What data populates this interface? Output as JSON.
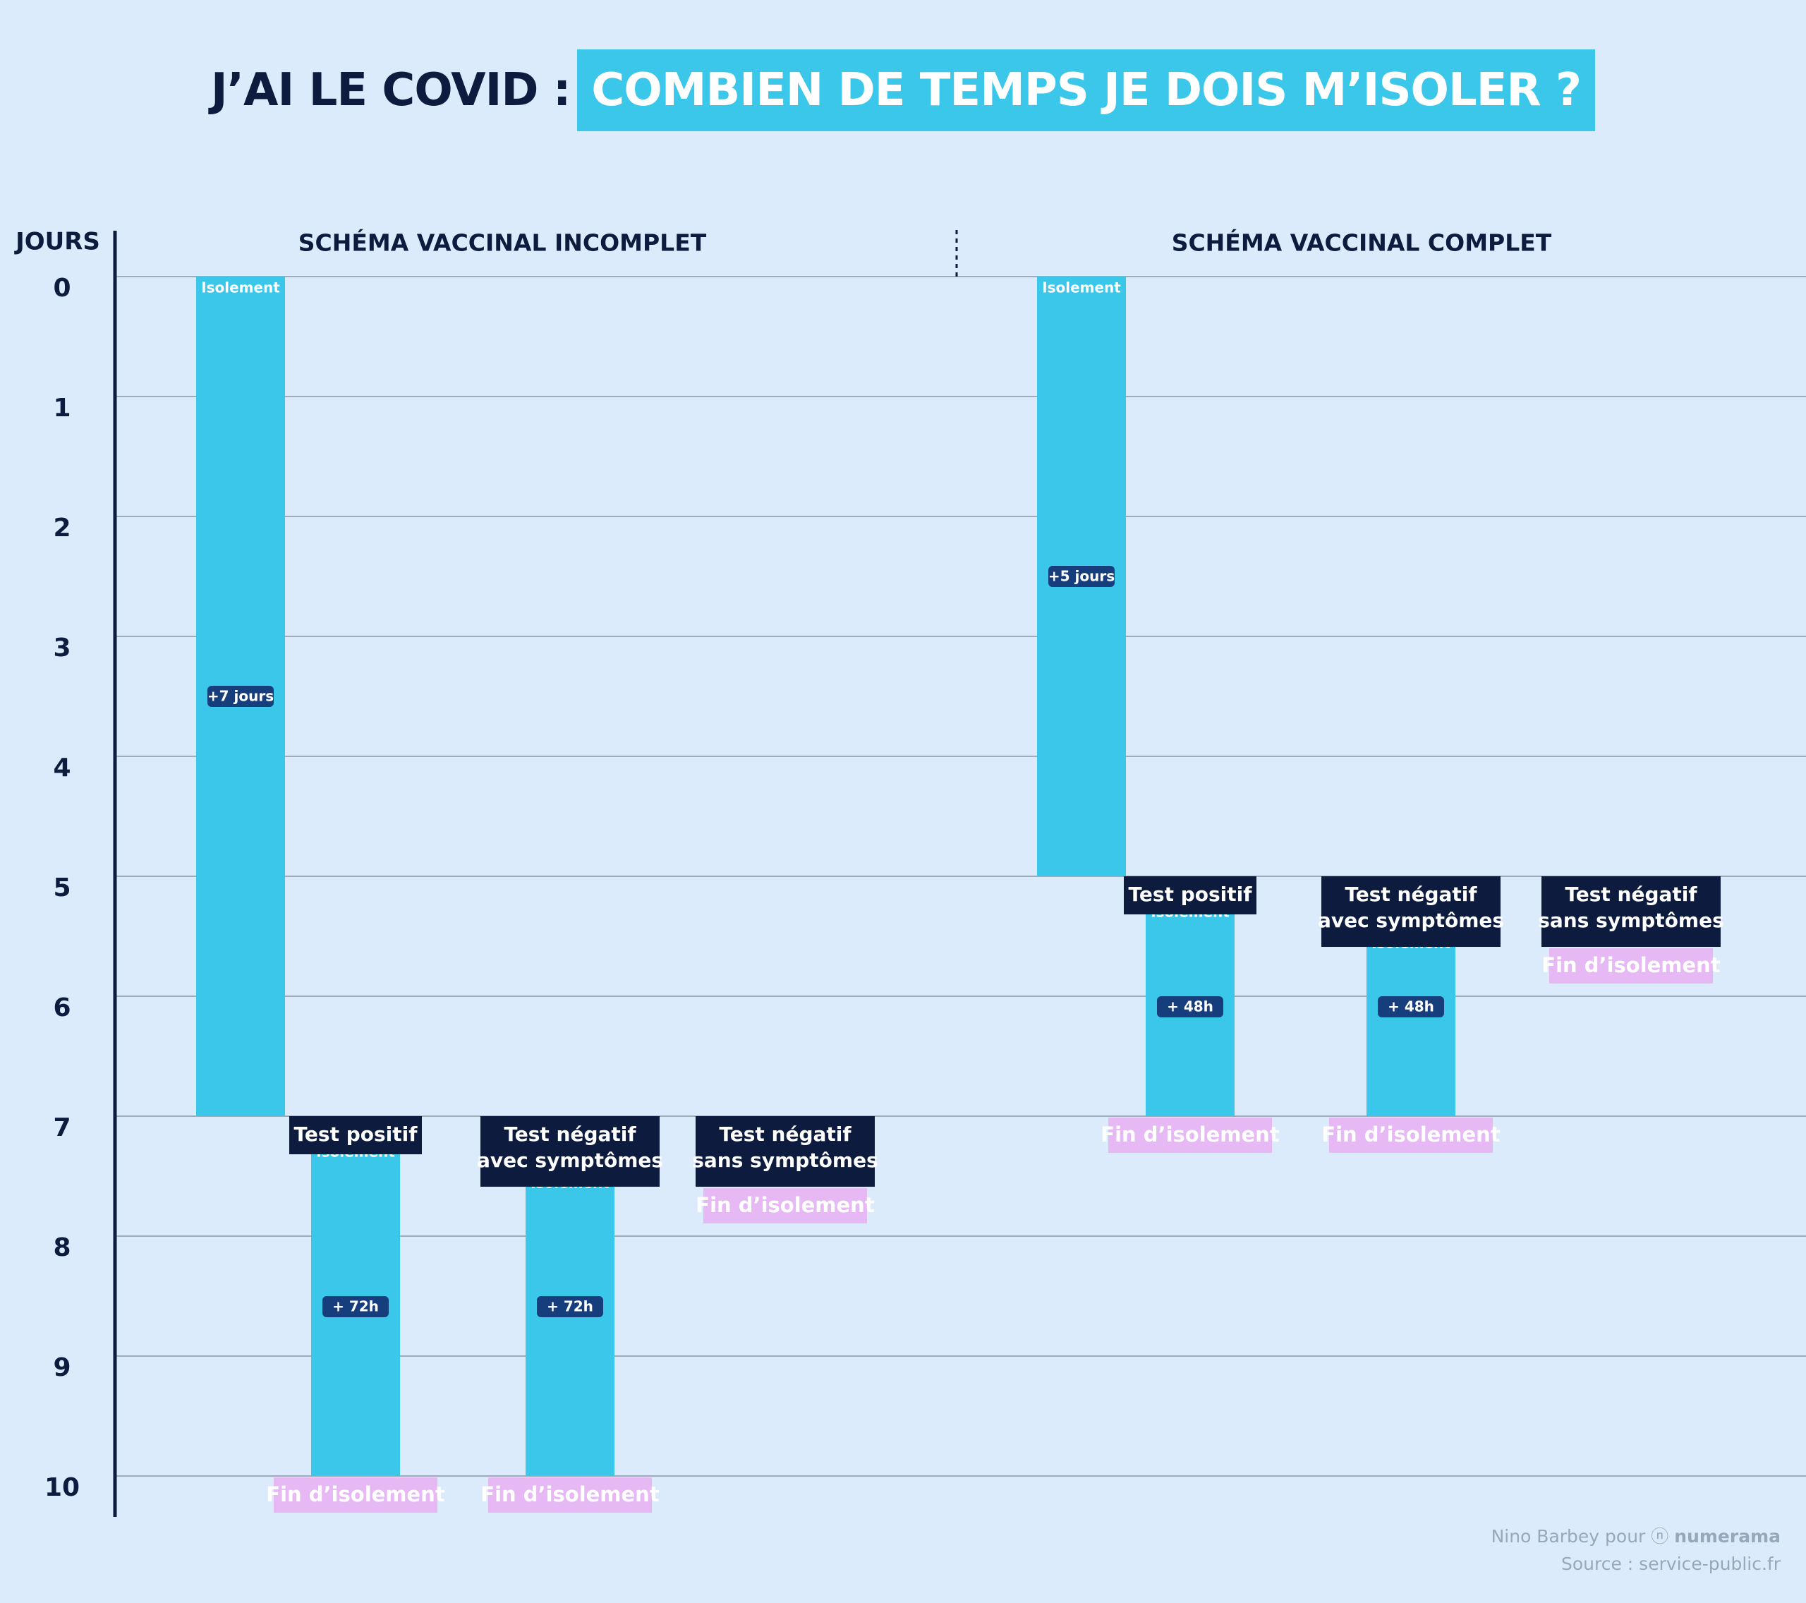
{
  "title": {
    "part1": "J’AI LE COVID :",
    "part2": "COMBIEN DE TEMPS JE DOIS M’ISOLER ?"
  },
  "colors": {
    "background": "#dcebfc",
    "navy": "#0d1b3e",
    "cyan": "#3bc7ea",
    "badge": "#163e7d",
    "end_label_bg": "#e6b8f4",
    "grid": "#8a97a6"
  },
  "chart_data": {
    "type": "gantt",
    "ylabel": "JOURS",
    "y_ticks": [
      0,
      1,
      2,
      3,
      4,
      5,
      6,
      7,
      8,
      9,
      10
    ],
    "ylim": [
      0,
      10
    ],
    "groups": [
      {
        "name": "SCHÉMA VACCINAL INCOMPLET",
        "columns": [
          {
            "bars": [
              {
                "start": 0,
                "end": 7,
                "top_label": "Isolement",
                "badge": "+7 jours"
              }
            ]
          },
          {
            "header": [
              "Test positif"
            ],
            "header_day": 7,
            "bars": [
              {
                "start": 7,
                "end": 10,
                "top_label": "Isolement",
                "badge": "+ 72h"
              }
            ],
            "end_label": "Fin d’isolement",
            "end_day": 10
          },
          {
            "header": [
              "Test négatif",
              "avec symptômes"
            ],
            "header_day": 7,
            "bars": [
              {
                "start": 7,
                "end": 10,
                "top_label": "Isolement",
                "badge": "+ 72h"
              }
            ],
            "end_label": "Fin d’isolement",
            "end_day": 10
          },
          {
            "header": [
              "Test négatif",
              "sans symptômes"
            ],
            "header_day": 7,
            "bars": [],
            "end_label": "Fin d’isolement",
            "end_day": 7
          }
        ]
      },
      {
        "name": "SCHÉMA VACCINAL COMPLET",
        "columns": [
          {
            "bars": [
              {
                "start": 0,
                "end": 5,
                "top_label": "Isolement",
                "badge": "+5 jours"
              }
            ]
          },
          {
            "header": [
              "Test positif"
            ],
            "header_day": 5,
            "bars": [
              {
                "start": 5,
                "end": 7,
                "top_label": "Isolement",
                "badge": "+ 48h"
              }
            ],
            "end_label": "Fin d’isolement",
            "end_day": 7
          },
          {
            "header": [
              "Test négatif",
              "avec symptômes"
            ],
            "header_day": 5,
            "bars": [
              {
                "start": 5,
                "end": 7,
                "top_label": "Isolement",
                "badge": "+ 48h"
              }
            ],
            "end_label": "Fin d’isolement",
            "end_day": 7
          },
          {
            "header": [
              "Test négatif",
              "sans symptômes"
            ],
            "header_day": 5,
            "bars": [],
            "end_label": "Fin d’isolement",
            "end_day": 5
          }
        ]
      }
    ]
  },
  "credits": {
    "author": "Nino Barbey pour",
    "brand": "numerama",
    "source": "Source : service-public.fr"
  }
}
